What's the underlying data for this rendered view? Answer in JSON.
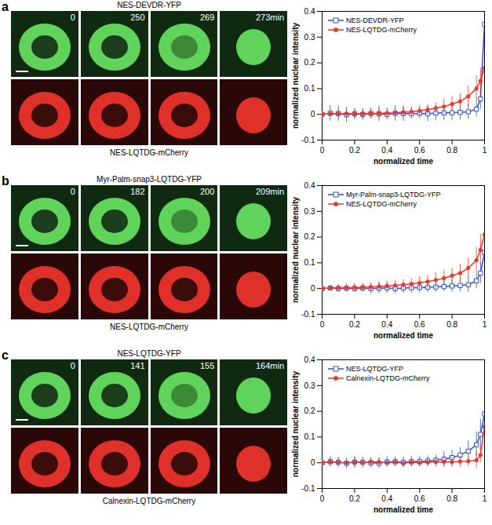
{
  "chart_data": [
    {
      "type": "line",
      "title": "a",
      "x_label": "normalized time",
      "y_label": "normalized nuclear intensity",
      "x": [
        0,
        0.05,
        0.1,
        0.15,
        0.2,
        0.25,
        0.3,
        0.35,
        0.4,
        0.45,
        0.5,
        0.55,
        0.6,
        0.65,
        0.7,
        0.75,
        0.8,
        0.85,
        0.9,
        0.95,
        0.975,
        1
      ],
      "series": [
        {
          "name": "NES-DEVDR-YFP",
          "color": "#2b4fd8",
          "marker": "square",
          "values": [
            0,
            0.004,
            0.003,
            -0.002,
            0.002,
            0,
            0.003,
            0.002,
            0,
            0.004,
            0.003,
            0.002,
            0.004,
            0.002,
            0.005,
            0.006,
            0.006,
            0.008,
            0.01,
            0.02,
            0.06,
            0.35
          ],
          "errors": [
            0.01,
            0.03,
            0.03,
            0.03,
            0.02,
            0.02,
            0.02,
            0.03,
            0.02,
            0.03,
            0.03,
            0.02,
            0.02,
            0.03,
            0.03,
            0.03,
            0.03,
            0.03,
            0.03,
            0.03,
            0.04,
            0.03
          ]
        },
        {
          "name": "NES-LQTDG-mCherry",
          "color": "#e8392a",
          "marker": "circle",
          "values": [
            0,
            0.002,
            0.002,
            0.003,
            0.002,
            0.002,
            0.004,
            0.004,
            0.005,
            0.006,
            0.008,
            0.01,
            0.014,
            0.018,
            0.024,
            0.03,
            0.04,
            0.05,
            0.07,
            0.1,
            0.13,
            0.18
          ],
          "errors": [
            0.01,
            0.01,
            0.02,
            0.02,
            0.02,
            0.02,
            0.02,
            0.02,
            0.02,
            0.02,
            0.02,
            0.02,
            0.02,
            0.02,
            0.02,
            0.03,
            0.03,
            0.03,
            0.04,
            0.05,
            0.05,
            0.07
          ]
        }
      ],
      "xlim": [
        0,
        1
      ],
      "xticks": [
        0,
        0.2,
        0.4,
        0.6,
        0.8,
        1
      ],
      "ylim": [
        -0.1,
        0.4
      ],
      "yticks": [
        -0.1,
        0,
        0.1,
        0.2,
        0.3,
        0.4
      ],
      "legend": "top-left"
    },
    {
      "type": "line",
      "title": "b",
      "x_label": "normalized time",
      "y_label": "normalized nuclear intensity",
      "x": [
        0,
        0.05,
        0.1,
        0.15,
        0.2,
        0.25,
        0.3,
        0.35,
        0.4,
        0.45,
        0.5,
        0.55,
        0.6,
        0.65,
        0.7,
        0.75,
        0.8,
        0.85,
        0.9,
        0.95,
        0.975,
        1
      ],
      "series": [
        {
          "name": "Myr-Palm-snap3-LQTDG-YFP",
          "color": "#2b4fd8",
          "marker": "square",
          "values": [
            0,
            0.002,
            0,
            0.001,
            0,
            0.002,
            0,
            0.001,
            0.002,
            0,
            0.002,
            0.003,
            0.004,
            0.005,
            0.006,
            0.008,
            0.01,
            0.012,
            0.015,
            0.03,
            0.06,
            0.14
          ],
          "errors": [
            0.01,
            0.01,
            0.015,
            0.015,
            0.015,
            0.015,
            0.02,
            0.02,
            0.02,
            0.02,
            0.02,
            0.02,
            0.02,
            0.02,
            0.02,
            0.02,
            0.025,
            0.025,
            0.03,
            0.03,
            0.04,
            0.08
          ]
        },
        {
          "name": "NES-LQTDG-mCherry",
          "color": "#e8392a",
          "marker": "circle",
          "values": [
            0,
            0.002,
            0.003,
            0.003,
            0.004,
            0.005,
            0.006,
            0.008,
            0.01,
            0.012,
            0.015,
            0.018,
            0.022,
            0.027,
            0.033,
            0.04,
            0.05,
            0.06,
            0.08,
            0.11,
            0.15,
            0.21
          ],
          "errors": [
            0.01,
            0.01,
            0.01,
            0.015,
            0.015,
            0.015,
            0.015,
            0.02,
            0.02,
            0.02,
            0.02,
            0.02,
            0.025,
            0.025,
            0.03,
            0.03,
            0.03,
            0.035,
            0.04,
            0.05,
            0.06,
            0.18
          ]
        }
      ],
      "xlim": [
        0,
        1
      ],
      "xticks": [
        0,
        0.2,
        0.4,
        0.6,
        0.8,
        1
      ],
      "ylim": [
        -0.1,
        0.4
      ],
      "yticks": [
        -0.1,
        0,
        0.1,
        0.2,
        0.3,
        0.4
      ],
      "legend": "top-left"
    },
    {
      "type": "line",
      "title": "c",
      "x_label": "normalized time",
      "y_label": "normalized nuclear intensity",
      "x": [
        0,
        0.05,
        0.1,
        0.15,
        0.2,
        0.25,
        0.3,
        0.35,
        0.4,
        0.45,
        0.5,
        0.55,
        0.6,
        0.65,
        0.7,
        0.75,
        0.8,
        0.85,
        0.9,
        0.95,
        0.975,
        1
      ],
      "series": [
        {
          "name": "NES-LQTDG-YFP",
          "color": "#2b4fd8",
          "marker": "square",
          "values": [
            0,
            0.004,
            0.002,
            -0.002,
            0.003,
            0.002,
            0,
            -0.002,
            0.003,
            0.004,
            0.002,
            0.004,
            0.005,
            0.007,
            0.01,
            0.014,
            0.02,
            0.03,
            0.045,
            0.07,
            0.11,
            0.19
          ],
          "errors": [
            0.01,
            0.02,
            0.02,
            0.02,
            0.02,
            0.02,
            0.02,
            0.02,
            0.02,
            0.02,
            0.02,
            0.02,
            0.02,
            0.02,
            0.02,
            0.03,
            0.03,
            0.03,
            0.04,
            0.05,
            0.06,
            0.08
          ]
        },
        {
          "name": "Calnexin-LQTDG-mCherry",
          "color": "#e8392a",
          "marker": "circle",
          "values": [
            0,
            0.003,
            0.002,
            0,
            0.002,
            0,
            0.004,
            0.003,
            0,
            0.002,
            -0.002,
            0.002,
            0,
            0.002,
            0.003,
            0.004,
            0.003,
            0.005,
            0.006,
            0.01,
            0.03,
            0.14
          ],
          "errors": [
            0.01,
            0.015,
            0.015,
            0.015,
            0.02,
            0.015,
            0.015,
            0.015,
            0.015,
            0.015,
            0.015,
            0.015,
            0.015,
            0.015,
            0.02,
            0.02,
            0.02,
            0.02,
            0.02,
            0.03,
            0.03,
            0.05
          ]
        }
      ],
      "xlim": [
        0,
        1
      ],
      "xticks": [
        0,
        0.2,
        0.4,
        0.6,
        0.8,
        1
      ],
      "ylim": [
        -0.1,
        0.4
      ],
      "yticks": [
        -0.1,
        0,
        0.1,
        0.2,
        0.3,
        0.4
      ],
      "legend": "top-left"
    }
  ],
  "images": [
    {
      "panel": "a",
      "top_label": "NES-DEVDR-YFP",
      "bottom_label": "NES-LQTDG-mCherry",
      "times": [
        "0",
        "250",
        "269",
        "273min"
      ]
    },
    {
      "panel": "b",
      "top_label": "Myr-Palm-snap3-LQTDG-YFP",
      "bottom_label": "NES-LQTDG-mCherry",
      "times": [
        "0",
        "182",
        "200",
        "209min"
      ]
    },
    {
      "panel": "c",
      "top_label": "NES-LQTDG-YFP",
      "bottom_label": "Calnexin-LQTDG-mCherry",
      "times": [
        "0",
        "141",
        "155",
        "164min"
      ]
    }
  ]
}
